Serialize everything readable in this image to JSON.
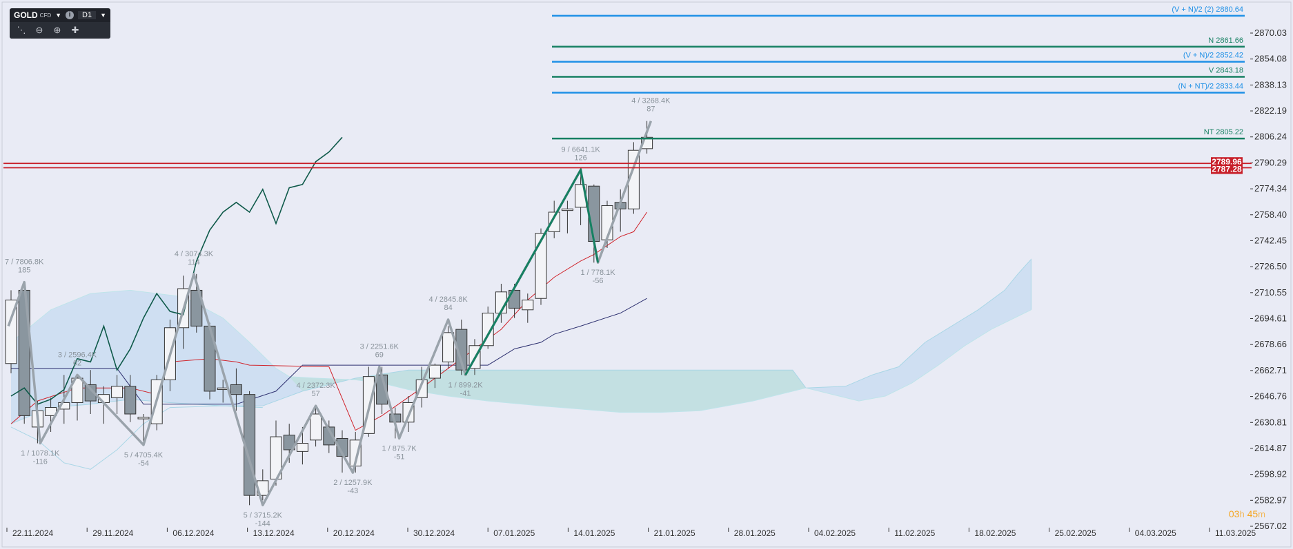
{
  "toolbar": {
    "symbol": "GOLD",
    "symbol_type": "CFD",
    "timeframe": "D1",
    "info_icon": "info-icon",
    "tools": [
      "indicators-icon",
      "zoom-out-icon",
      "zoom-in-icon",
      "crosshair-icon"
    ]
  },
  "countdown": {
    "hours": "03",
    "h_unit": "h",
    "minutes": "45",
    "m_unit": "m"
  },
  "colors": {
    "background": "#e9ebf5",
    "bull_body": "#f3f4f7",
    "bear_body": "#8a969f",
    "zigzag": "#9aa3ab",
    "chikou": "#0f5a4a",
    "tenkan": "#d0242b",
    "kijun": "#2e3170",
    "cloud_bull": "#bfe0dc",
    "cloud_bear": "#b9d6ef",
    "level_blue": "#1e90e6",
    "level_green": "#168062",
    "level_red": "#c8202a"
  },
  "chart_data": {
    "type": "candlestick",
    "ylim": [
      2567.02,
      2888.0
    ],
    "yticks": [
      "2870.03",
      "2854.08",
      "2838.13",
      "2822.19",
      "2806.24",
      "2790.29",
      "2774.34",
      "2758.40",
      "2742.45",
      "2726.50",
      "2710.55",
      "2694.61",
      "2678.66",
      "2662.71",
      "2646.76",
      "2630.81",
      "2614.87",
      "2598.92",
      "2582.97",
      "2567.02"
    ],
    "xtick_labels": [
      "22.11.2024",
      "29.11.2024",
      "06.12.2024",
      "13.12.2024",
      "20.12.2024",
      "30.12.2024",
      "07.01.2025",
      "14.01.2025",
      "21.01.2025",
      "28.01.2025",
      "04.02.2025",
      "11.02.2025",
      "18.02.2025",
      "25.02.2025",
      "04.03.2025",
      "11.03.2025"
    ],
    "candles": [
      {
        "o": 2667,
        "h": 2712,
        "l": 2661,
        "c": 2706
      },
      {
        "o": 2712,
        "h": 2717,
        "l": 2630,
        "c": 2635
      },
      {
        "o": 2628,
        "h": 2644,
        "l": 2618,
        "c": 2638
      },
      {
        "o": 2635,
        "h": 2646,
        "l": 2625,
        "c": 2640
      },
      {
        "o": 2639,
        "h": 2660,
        "l": 2630,
        "c": 2643
      },
      {
        "o": 2643,
        "h": 2660,
        "l": 2632,
        "c": 2658
      },
      {
        "o": 2654,
        "h": 2663,
        "l": 2636,
        "c": 2644
      },
      {
        "o": 2643,
        "h": 2653,
        "l": 2630,
        "c": 2648
      },
      {
        "o": 2646,
        "h": 2660,
        "l": 2636,
        "c": 2653
      },
      {
        "o": 2653,
        "h": 2660,
        "l": 2631,
        "c": 2636
      },
      {
        "o": 2633,
        "h": 2636,
        "l": 2617,
        "c": 2634
      },
      {
        "o": 2630,
        "h": 2660,
        "l": 2626,
        "c": 2657
      },
      {
        "o": 2657,
        "h": 2694,
        "l": 2650,
        "c": 2689
      },
      {
        "o": 2689,
        "h": 2721,
        "l": 2676,
        "c": 2713
      },
      {
        "o": 2712,
        "h": 2722,
        "l": 2686,
        "c": 2690
      },
      {
        "o": 2690,
        "h": 2692,
        "l": 2645,
        "c": 2650
      },
      {
        "o": 2651,
        "h": 2657,
        "l": 2643,
        "c": 2652
      },
      {
        "o": 2654,
        "h": 2664,
        "l": 2638,
        "c": 2648
      },
      {
        "o": 2648,
        "h": 2650,
        "l": 2580,
        "c": 2586
      },
      {
        "o": 2586,
        "h": 2602,
        "l": 2583,
        "c": 2595
      },
      {
        "o": 2596,
        "h": 2632,
        "l": 2592,
        "c": 2622
      },
      {
        "o": 2623,
        "h": 2630,
        "l": 2606,
        "c": 2614
      },
      {
        "o": 2613,
        "h": 2628,
        "l": 2605,
        "c": 2618
      },
      {
        "o": 2620,
        "h": 2641,
        "l": 2616,
        "c": 2636
      },
      {
        "o": 2628,
        "h": 2632,
        "l": 2612,
        "c": 2617
      },
      {
        "o": 2621,
        "h": 2626,
        "l": 2600,
        "c": 2610
      },
      {
        "o": 2604,
        "h": 2625,
        "l": 2600,
        "c": 2620
      },
      {
        "o": 2624,
        "h": 2665,
        "l": 2622,
        "c": 2659
      },
      {
        "o": 2660,
        "h": 2665,
        "l": 2636,
        "c": 2642
      },
      {
        "o": 2636,
        "h": 2640,
        "l": 2621,
        "c": 2631
      },
      {
        "o": 2631,
        "h": 2647,
        "l": 2625,
        "c": 2643
      },
      {
        "o": 2646,
        "h": 2665,
        "l": 2640,
        "c": 2657
      },
      {
        "o": 2658,
        "h": 2667,
        "l": 2652,
        "c": 2666
      },
      {
        "o": 2668,
        "h": 2690,
        "l": 2664,
        "c": 2686
      },
      {
        "o": 2688,
        "h": 2694,
        "l": 2660,
        "c": 2663
      },
      {
        "o": 2664,
        "h": 2682,
        "l": 2660,
        "c": 2678
      },
      {
        "o": 2678,
        "h": 2702,
        "l": 2676,
        "c": 2698
      },
      {
        "o": 2698,
        "h": 2716,
        "l": 2692,
        "c": 2711
      },
      {
        "o": 2712,
        "h": 2716,
        "l": 2695,
        "c": 2701
      },
      {
        "o": 2700,
        "h": 2710,
        "l": 2692,
        "c": 2706
      },
      {
        "o": 2707,
        "h": 2750,
        "l": 2703,
        "c": 2747
      },
      {
        "o": 2748,
        "h": 2767,
        "l": 2744,
        "c": 2760
      },
      {
        "o": 2761,
        "h": 2767,
        "l": 2747,
        "c": 2762
      },
      {
        "o": 2763,
        "h": 2786,
        "l": 2752,
        "c": 2777
      },
      {
        "o": 2776,
        "h": 2777,
        "l": 2729,
        "c": 2742
      },
      {
        "o": 2743,
        "h": 2767,
        "l": 2738,
        "c": 2764
      },
      {
        "o": 2766,
        "h": 2774,
        "l": 2748,
        "c": 2762
      },
      {
        "o": 2762,
        "h": 2803,
        "l": 2759,
        "c": 2798
      },
      {
        "o": 2799,
        "h": 2816,
        "l": 2796,
        "c": 2806
      }
    ],
    "tenkan_sen": [
      {
        "i": 0,
        "y": 2630
      },
      {
        "i": 2,
        "y": 2644
      },
      {
        "i": 5,
        "y": 2652
      },
      {
        "i": 9,
        "y": 2652
      },
      {
        "i": 11,
        "y": 2648
      },
      {
        "i": 12,
        "y": 2668
      },
      {
        "i": 15,
        "y": 2670
      },
      {
        "i": 17,
        "y": 2668
      },
      {
        "i": 18,
        "y": 2666
      },
      {
        "i": 24,
        "y": 2665
      },
      {
        "i": 26,
        "y": 2626
      },
      {
        "i": 28,
        "y": 2635
      },
      {
        "i": 31,
        "y": 2652
      },
      {
        "i": 33,
        "y": 2664
      },
      {
        "i": 37,
        "y": 2688
      },
      {
        "i": 39,
        "y": 2706
      },
      {
        "i": 41,
        "y": 2720
      },
      {
        "i": 43,
        "y": 2730
      },
      {
        "i": 44,
        "y": 2734
      },
      {
        "i": 46,
        "y": 2745
      },
      {
        "i": 47,
        "y": 2748
      },
      {
        "i": 48,
        "y": 2760
      }
    ],
    "kijun_sen": [
      {
        "i": 0,
        "y": 2664
      },
      {
        "i": 8,
        "y": 2664
      },
      {
        "i": 10,
        "y": 2642
      },
      {
        "i": 17,
        "y": 2642
      },
      {
        "i": 20,
        "y": 2650
      },
      {
        "i": 22,
        "y": 2666
      },
      {
        "i": 36,
        "y": 2666
      },
      {
        "i": 38,
        "y": 2676
      },
      {
        "i": 40,
        "y": 2680
      },
      {
        "i": 41,
        "y": 2685
      },
      {
        "i": 43,
        "y": 2690
      },
      {
        "i": 46,
        "y": 2698
      },
      {
        "i": 48,
        "y": 2707
      }
    ],
    "chikou_span": [
      {
        "i": 0,
        "y": 2647
      },
      {
        "i": 1,
        "y": 2652
      },
      {
        "i": 2,
        "y": 2642
      },
      {
        "i": 3,
        "y": 2645
      },
      {
        "i": 4,
        "y": 2651
      },
      {
        "i": 5,
        "y": 2670
      },
      {
        "i": 6,
        "y": 2668
      },
      {
        "i": 7,
        "y": 2690
      },
      {
        "i": 8,
        "y": 2663
      },
      {
        "i": 9,
        "y": 2676
      },
      {
        "i": 10,
        "y": 2695
      },
      {
        "i": 11,
        "y": 2710
      },
      {
        "i": 12,
        "y": 2699
      },
      {
        "i": 13,
        "y": 2697
      },
      {
        "i": 14,
        "y": 2730
      },
      {
        "i": 15,
        "y": 2749
      },
      {
        "i": 16,
        "y": 2760
      },
      {
        "i": 17,
        "y": 2766
      },
      {
        "i": 18,
        "y": 2760
      },
      {
        "i": 19,
        "y": 2774
      },
      {
        "i": 20,
        "y": 2753
      },
      {
        "i": 21,
        "y": 2775
      },
      {
        "i": 22,
        "y": 2777
      },
      {
        "i": 23,
        "y": 2791
      },
      {
        "i": 24,
        "y": 2797
      },
      {
        "i": 25,
        "y": 2806
      }
    ],
    "cloud": {
      "span_a": [
        {
          "i": 0,
          "y": 2630
        },
        {
          "i": 3,
          "y": 2640
        },
        {
          "i": 6,
          "y": 2642
        },
        {
          "i": 9,
          "y": 2645
        },
        {
          "i": 12,
          "y": 2643
        },
        {
          "i": 16,
          "y": 2641
        },
        {
          "i": 19,
          "y": 2641
        },
        {
          "i": 22,
          "y": 2650
        },
        {
          "i": 26,
          "y": 2658
        },
        {
          "i": 30,
          "y": 2663
        },
        {
          "i": 35,
          "y": 2663
        },
        {
          "i": 40,
          "y": 2663
        },
        {
          "i": 45,
          "y": 2663
        },
        {
          "i": 50,
          "y": 2663
        },
        {
          "i": 55,
          "y": 2663
        },
        {
          "i": 59,
          "y": 2663
        },
        {
          "i": 60,
          "y": 2652
        },
        {
          "i": 63,
          "y": 2653
        },
        {
          "i": 65,
          "y": 2660
        },
        {
          "i": 67,
          "y": 2665
        },
        {
          "i": 69,
          "y": 2680
        },
        {
          "i": 71,
          "y": 2690
        },
        {
          "i": 73,
          "y": 2700
        },
        {
          "i": 75,
          "y": 2712
        },
        {
          "i": 76,
          "y": 2722
        },
        {
          "i": 77,
          "y": 2731
        },
        {
          "i": 77,
          "y": 2700
        }
      ],
      "span_b": [
        {
          "i": 0,
          "y": 2680
        },
        {
          "i": 3,
          "y": 2700
        },
        {
          "i": 6,
          "y": 2710
        },
        {
          "i": 9,
          "y": 2712
        },
        {
          "i": 11,
          "y": 2710
        },
        {
          "i": 13,
          "y": 2708
        },
        {
          "i": 16,
          "y": 2695
        },
        {
          "i": 18,
          "y": 2680
        },
        {
          "i": 20,
          "y": 2664
        },
        {
          "i": 21,
          "y": 2659
        },
        {
          "i": 23,
          "y": 2658
        },
        {
          "i": 26,
          "y": 2657
        },
        {
          "i": 28,
          "y": 2655
        },
        {
          "i": 30,
          "y": 2651
        },
        {
          "i": 33,
          "y": 2647
        },
        {
          "i": 36,
          "y": 2644
        },
        {
          "i": 40,
          "y": 2641
        },
        {
          "i": 43,
          "y": 2639
        },
        {
          "i": 46,
          "y": 2637
        },
        {
          "i": 49,
          "y": 2637
        },
        {
          "i": 52,
          "y": 2638
        },
        {
          "i": 54,
          "y": 2641
        },
        {
          "i": 56,
          "y": 2644
        },
        {
          "i": 58,
          "y": 2648
        },
        {
          "i": 60,
          "y": 2652
        },
        {
          "i": 62,
          "y": 2648
        },
        {
          "i": 64,
          "y": 2644
        },
        {
          "i": 66,
          "y": 2647
        },
        {
          "i": 68,
          "y": 2655
        },
        {
          "i": 70,
          "y": 2666
        },
        {
          "i": 72,
          "y": 2678
        },
        {
          "i": 74,
          "y": 2688
        },
        {
          "i": 77,
          "y": 2700
        }
      ],
      "lower_envelope": [
        {
          "i": 0,
          "y": 2628
        },
        {
          "i": 2,
          "y": 2620
        },
        {
          "i": 4,
          "y": 2606
        },
        {
          "i": 6,
          "y": 2602
        },
        {
          "i": 8,
          "y": 2614
        },
        {
          "i": 10,
          "y": 2630
        },
        {
          "i": 12,
          "y": 2640
        },
        {
          "i": 16,
          "y": 2641
        },
        {
          "i": 19,
          "y": 2640
        }
      ]
    },
    "levels": [
      {
        "label": "(V + N)/2 (2) 2880.64",
        "value": 2880.64,
        "color": "blue"
      },
      {
        "label": "N 2861.66",
        "value": 2861.66,
        "color": "green"
      },
      {
        "label": "(V + N)/2 2852.42",
        "value": 2852.42,
        "color": "blue"
      },
      {
        "label": "V 2843.18",
        "value": 2843.18,
        "color": "green"
      },
      {
        "label": "(N + NT)/2 2833.44",
        "value": 2833.44,
        "color": "blue"
      },
      {
        "label": "NT 2805.22",
        "value": 2805.22,
        "color": "green"
      }
    ],
    "red_levels": [
      {
        "label": "2789.96",
        "value": 2789.96
      },
      {
        "label": "2787.28",
        "value": 2787.28
      }
    ],
    "zigzag": [
      {
        "i": -0.2,
        "y": 2690,
        "label": ""
      },
      {
        "i": 1,
        "y": 2717,
        "label1": "7 / 7806.8K",
        "label2": "185",
        "pos": "above"
      },
      {
        "i": 2.2,
        "y": 2618,
        "label1": "1 / 1078.1K",
        "label2": "-116",
        "pos": "below"
      },
      {
        "i": 5,
        "y": 2660,
        "label1": "3 / 2596.4K",
        "label2": "62",
        "pos": "above"
      },
      {
        "i": 10,
        "y": 2617,
        "label1": "5 / 4705.4K",
        "label2": "-54",
        "pos": "below"
      },
      {
        "i": 13.8,
        "y": 2722,
        "label1": "4 / 3074.3K",
        "label2": "114",
        "pos": "above"
      },
      {
        "i": 19,
        "y": 2580,
        "label1": "5 / 3715.2K",
        "label2": "-144",
        "pos": "below"
      },
      {
        "i": 23,
        "y": 2641,
        "label1": "4 / 2372.3K",
        "label2": "57",
        "pos": "above"
      },
      {
        "i": 25.8,
        "y": 2600,
        "label1": "2 / 1257.9K",
        "label2": "-43",
        "pos": "below"
      },
      {
        "i": 27.8,
        "y": 2665,
        "label1": "3 / 2251.6K",
        "label2": "69",
        "pos": "above"
      },
      {
        "i": 29.3,
        "y": 2621,
        "label1": "1 / 875.7K",
        "label2": "-51",
        "pos": "below"
      },
      {
        "i": 33,
        "y": 2694,
        "label1": "4 / 2845.8K",
        "label2": "84",
        "pos": "above"
      },
      {
        "i": 34.3,
        "y": 2660,
        "label1": "1 / 899.2K",
        "label2": "-41",
        "pos": "below"
      },
      {
        "i": 43,
        "y": 2786,
        "label1": "9 / 6641.1K",
        "label2": "126",
        "pos": "above"
      },
      {
        "i": 44.3,
        "y": 2729,
        "label1": "1 / 778.1K",
        "label2": "-56",
        "pos": "below"
      },
      {
        "i": 48.3,
        "y": 2816,
        "label1": "4 / 3268.4K",
        "label2": "87",
        "pos": "above"
      }
    ],
    "green_wave": [
      {
        "i": 34.3,
        "y": 2660
      },
      {
        "i": 43,
        "y": 2786
      },
      {
        "i": 44.3,
        "y": 2729
      }
    ],
    "watermark": []
  }
}
